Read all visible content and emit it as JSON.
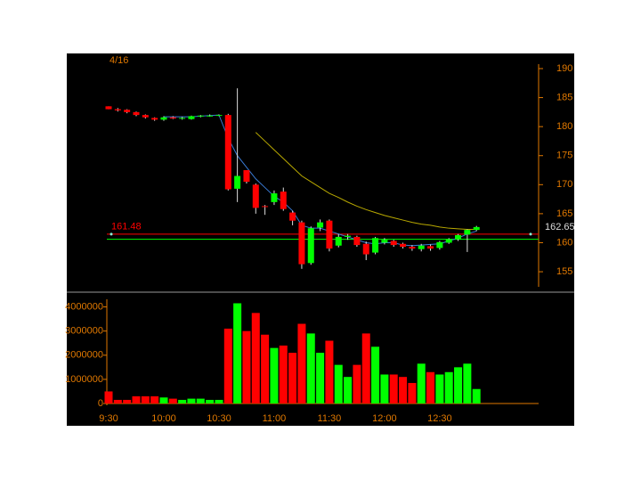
{
  "chart_data": [
    {
      "type": "candlestick",
      "date_label": "4/16",
      "categories": [
        "9:30",
        null,
        null,
        null,
        null,
        null,
        "10:00",
        null,
        null,
        null,
        null,
        null,
        "10:30",
        null,
        null,
        null,
        null,
        null,
        "11:00",
        null,
        null,
        null,
        null,
        null,
        "11:30",
        null,
        null,
        null,
        null,
        null,
        "12:00",
        null,
        null,
        null,
        null,
        null,
        "12:30",
        null,
        null,
        null,
        null
      ],
      "open": [
        183.5,
        183,
        182.9,
        182.5,
        182,
        181.5,
        181.2,
        181.6,
        181.4,
        181.3,
        181.8,
        181.9,
        181.9,
        182,
        169.3,
        172.5,
        170,
        166.3,
        167,
        168.8,
        165.2,
        163.5,
        156.5,
        162.6,
        163.8,
        159.5,
        161,
        161,
        159.8,
        158.3,
        160,
        160.3,
        159.8,
        159.3,
        158.9,
        159.4,
        159.1,
        160,
        160.6,
        161.4,
        162.2
      ],
      "high": [
        183.5,
        183.2,
        183,
        182.6,
        182.1,
        181.6,
        181.8,
        181.8,
        181.7,
        181.9,
        182,
        182.1,
        182.1,
        182.2,
        186.6,
        172.5,
        170.2,
        166.5,
        169,
        169.5,
        165.5,
        163.8,
        162.8,
        164,
        164,
        161.5,
        161.5,
        161.2,
        160.2,
        161,
        160.8,
        160.5,
        160,
        159.6,
        159.8,
        159.7,
        160.3,
        160.8,
        161.5,
        162.3,
        162.9
      ],
      "low": [
        183,
        182.6,
        182.3,
        181.8,
        181.4,
        181,
        181,
        181.3,
        181.2,
        181.2,
        181.6,
        181.7,
        181.8,
        169,
        167,
        170.2,
        165,
        164.8,
        166.5,
        165.5,
        163,
        155.5,
        156.2,
        162,
        158.5,
        159.2,
        160.5,
        159.3,
        157,
        158,
        159.7,
        159.3,
        159,
        158.6,
        158.5,
        158.6,
        158.8,
        159.8,
        160.3,
        158.4,
        162
      ],
      "close": [
        183,
        182.8,
        182.5,
        182,
        181.6,
        181.2,
        181.6,
        181.4,
        181.5,
        181.8,
        181.9,
        181.9,
        182,
        169.2,
        171.5,
        170.5,
        166,
        166.2,
        168.5,
        165.8,
        163.8,
        156.3,
        162.5,
        163.5,
        159,
        161,
        161.2,
        159.6,
        158,
        160.8,
        160.5,
        159.6,
        159.3,
        159,
        159.5,
        159,
        160.1,
        160.6,
        161.3,
        162.2,
        162.7
      ],
      "up_color": "#00ff00",
      "down_color": "#ff0000",
      "lines": [
        {
          "color": "#3a7bd5",
          "values": [
            null,
            null,
            null,
            null,
            null,
            null,
            181.7,
            181.7,
            181.7,
            181.7,
            181.8,
            181.9,
            182,
            178,
            175,
            173,
            171,
            169.5,
            168,
            167,
            165.5,
            163,
            162.5,
            162.5,
            162,
            161.5,
            161,
            160.5,
            160,
            159.8,
            160,
            160,
            159.6,
            159.5,
            159.6,
            159.7,
            159.8,
            160.3,
            160.8,
            161.5,
            162
          ]
        },
        {
          "color": "#b8a800",
          "values": [
            null,
            null,
            null,
            null,
            null,
            null,
            null,
            null,
            null,
            null,
            null,
            null,
            null,
            null,
            null,
            null,
            179,
            177.5,
            176,
            174.5,
            173,
            171.5,
            170.5,
            169.5,
            168.5,
            167.8,
            167,
            166.3,
            165.7,
            165.2,
            164.7,
            164.3,
            163.9,
            163.5,
            163.2,
            163,
            162.7,
            162.5,
            162.4,
            162.3,
            162.3
          ]
        }
      ],
      "hlines": [
        {
          "value": 161.48,
          "label": "161.48",
          "color": "#ff0000"
        },
        {
          "value": 160.6,
          "color": "#00ff00"
        }
      ],
      "last_price": 162.65,
      "ylim": [
        152.4,
        192.3
      ],
      "yticks": [
        155,
        160,
        165,
        170,
        175,
        180,
        185,
        190
      ]
    },
    {
      "type": "bar",
      "categories": [
        "9:30",
        null,
        null,
        null,
        null,
        null,
        "10:00",
        null,
        null,
        null,
        null,
        null,
        "10:30",
        null,
        null,
        null,
        null,
        null,
        "11:00",
        null,
        null,
        null,
        null,
        null,
        "11:30",
        null,
        null,
        null,
        null,
        null,
        "12:00",
        null,
        null,
        null,
        null,
        null,
        "12:30",
        null,
        null,
        null,
        null
      ],
      "values": [
        500000,
        150000,
        150000,
        300000,
        300000,
        300000,
        250000,
        200000,
        150000,
        200000,
        200000,
        150000,
        150000,
        3100000,
        4150000,
        3000000,
        3750000,
        2850000,
        2300000,
        2400000,
        2100000,
        3300000,
        2900000,
        2100000,
        2600000,
        1600000,
        1100000,
        1600000,
        2900000,
        2350000,
        1200000,
        1200000,
        1100000,
        850000,
        1650000,
        1300000,
        1200000,
        1300000,
        1500000,
        1650000,
        600000
      ],
      "colors": [
        "#ff0000",
        "#ff0000",
        "#ff0000",
        "#ff0000",
        "#ff0000",
        "#ff0000",
        "#00ff00",
        "#ff0000",
        "#00ff00",
        "#00ff00",
        "#00ff00",
        "#00ff00",
        "#00ff00",
        "#ff0000",
        "#00ff00",
        "#ff0000",
        "#ff0000",
        "#ff0000",
        "#00ff00",
        "#ff0000",
        "#ff0000",
        "#ff0000",
        "#00ff00",
        "#00ff00",
        "#ff0000",
        "#00ff00",
        "#00ff00",
        "#ff0000",
        "#ff0000",
        "#00ff00",
        "#00ff00",
        "#ff0000",
        "#ff0000",
        "#ff0000",
        "#00ff00",
        "#ff0000",
        "#00ff00",
        "#00ff00",
        "#00ff00",
        "#00ff00",
        "#00ff00"
      ],
      "ylim": [
        0,
        4500000
      ],
      "yticks": [
        0,
        1000000,
        2000000,
        3000000,
        4000000
      ]
    }
  ]
}
